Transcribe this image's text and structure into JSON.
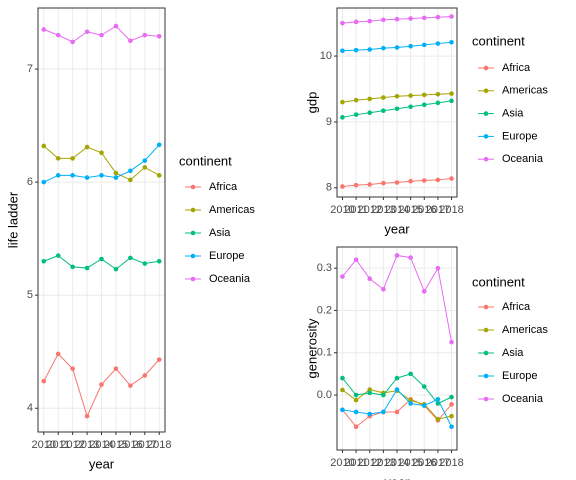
{
  "chart_data": [
    {
      "type": "line",
      "y_label": "life ladder",
      "x_label": "year",
      "legend_title": "continent",
      "grid": true,
      "x": [
        2010,
        2011,
        2012,
        2013,
        2014,
        2015,
        2016,
        2017,
        2018
      ],
      "xlim": [
        2009.6,
        2018.4
      ],
      "xticks": [
        2010,
        2011,
        2012,
        2013,
        2014,
        2015,
        2016,
        2017,
        2018
      ],
      "ylim": [
        3.79,
        7.54
      ],
      "yticks": [
        4,
        5,
        6,
        7
      ],
      "series": [
        {
          "name": "Africa",
          "color": "#F8766D",
          "values": [
            4.24,
            4.48,
            4.35,
            3.93,
            4.21,
            4.35,
            4.2,
            4.29,
            4.43
          ]
        },
        {
          "name": "Americas",
          "color": "#A3A500",
          "values": [
            6.32,
            6.21,
            6.21,
            6.31,
            6.26,
            6.08,
            6.02,
            6.13,
            6.06
          ]
        },
        {
          "name": "Asia",
          "color": "#00BF7D",
          "values": [
            5.3,
            5.35,
            5.25,
            5.24,
            5.32,
            5.23,
            5.33,
            5.28,
            5.3
          ]
        },
        {
          "name": "Europe",
          "color": "#00B0F6",
          "values": [
            6.0,
            6.06,
            6.06,
            6.04,
            6.06,
            6.04,
            6.1,
            6.19,
            6.33
          ]
        },
        {
          "name": "Oceania",
          "color": "#E76BF3",
          "values": [
            7.35,
            7.3,
            7.24,
            7.33,
            7.3,
            7.38,
            7.25,
            7.3,
            7.29
          ]
        }
      ]
    },
    {
      "type": "line",
      "y_label": "gdp",
      "x_label": "year",
      "legend_title": "continent",
      "grid": true,
      "x": [
        2010,
        2011,
        2012,
        2013,
        2014,
        2015,
        2016,
        2017,
        2018
      ],
      "xlim": [
        2009.6,
        2018.4
      ],
      "xticks": [
        2010,
        2011,
        2012,
        2013,
        2014,
        2015,
        2016,
        2017,
        2018
      ],
      "ylim": [
        7.86,
        10.73
      ],
      "yticks": [
        8,
        9,
        10
      ],
      "series": [
        {
          "name": "Africa",
          "color": "#F8766D",
          "values": [
            8.02,
            8.04,
            8.05,
            8.07,
            8.08,
            8.1,
            8.11,
            8.12,
            8.14
          ]
        },
        {
          "name": "Americas",
          "color": "#A3A500",
          "values": [
            9.3,
            9.33,
            9.35,
            9.37,
            9.39,
            9.4,
            9.41,
            9.42,
            9.43
          ]
        },
        {
          "name": "Asia",
          "color": "#00BF7D",
          "values": [
            9.07,
            9.11,
            9.14,
            9.17,
            9.2,
            9.23,
            9.26,
            9.29,
            9.32
          ]
        },
        {
          "name": "Europe",
          "color": "#00B0F6",
          "values": [
            10.08,
            10.09,
            10.1,
            10.12,
            10.13,
            10.15,
            10.17,
            10.19,
            10.21
          ]
        },
        {
          "name": "Oceania",
          "color": "#E76BF3",
          "values": [
            10.5,
            10.52,
            10.53,
            10.55,
            10.56,
            10.57,
            10.58,
            10.59,
            10.6
          ]
        }
      ]
    },
    {
      "type": "line",
      "y_label": "generosity",
      "x_label": "year",
      "legend_title": "continent",
      "grid": true,
      "x": [
        2010,
        2011,
        2012,
        2013,
        2014,
        2015,
        2016,
        2017,
        2018
      ],
      "xlim": [
        2009.6,
        2018.4
      ],
      "xticks": [
        2010,
        2011,
        2012,
        2013,
        2014,
        2015,
        2016,
        2017,
        2018
      ],
      "ylim": [
        -0.13,
        0.35
      ],
      "yticks": [
        {
          "value": 0,
          "label": "0.0"
        },
        0.1,
        0.2,
        0.3
      ],
      "series": [
        {
          "name": "Africa",
          "color": "#F8766D",
          "values": [
            -0.035,
            -0.075,
            -0.05,
            -0.04,
            -0.04,
            -0.01,
            -0.025,
            -0.06,
            -0.022
          ]
        },
        {
          "name": "Americas",
          "color": "#A3A500",
          "values": [
            0.012,
            -0.012,
            0.013,
            0.005,
            0.01,
            -0.013,
            -0.022,
            -0.057,
            -0.05
          ]
        },
        {
          "name": "Asia",
          "color": "#00BF7D",
          "values": [
            0.04,
            0.0,
            0.005,
            0.0,
            0.04,
            0.05,
            0.02,
            -0.02,
            -0.005
          ]
        },
        {
          "name": "Europe",
          "color": "#00B0F6",
          "values": [
            -0.035,
            -0.04,
            -0.045,
            -0.04,
            0.013,
            -0.02,
            -0.025,
            -0.01,
            -0.075
          ]
        },
        {
          "name": "Oceania",
          "color": "#E76BF3",
          "values": [
            0.28,
            0.32,
            0.275,
            0.25,
            0.33,
            0.325,
            0.245,
            0.3,
            0.125
          ]
        }
      ]
    }
  ]
}
